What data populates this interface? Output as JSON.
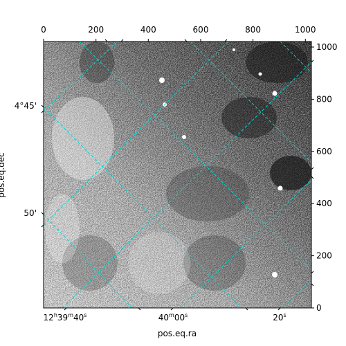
{
  "figure": {
    "xlabel": "pos.eq.ra",
    "ylabel": "pos.eq.dec",
    "top_pixel_ticks": [
      "0",
      "200",
      "400",
      "600",
      "800",
      "1000"
    ],
    "right_pixel_ticks": [
      "0",
      "200",
      "400",
      "600",
      "800",
      "1000"
    ],
    "ra_ticks": [
      {
        "hm": "12",
        "h": "h",
        "mm": "39",
        "m": "m",
        "ss": "40",
        "s": "s"
      },
      {
        "hm": "",
        "h": "",
        "mm": "40",
        "m": "m",
        "ss": "00",
        "s": "s"
      },
      {
        "hm": "",
        "h": "",
        "mm": "",
        "m": "",
        "ss": "20",
        "s": "s"
      }
    ],
    "dec_ticks": [
      "4°45'",
      "50'"
    ],
    "colors": {
      "grid": "#00d5d5",
      "frame": "#000000",
      "image_dark": "#111111",
      "image_light": "#ffffff"
    }
  }
}
